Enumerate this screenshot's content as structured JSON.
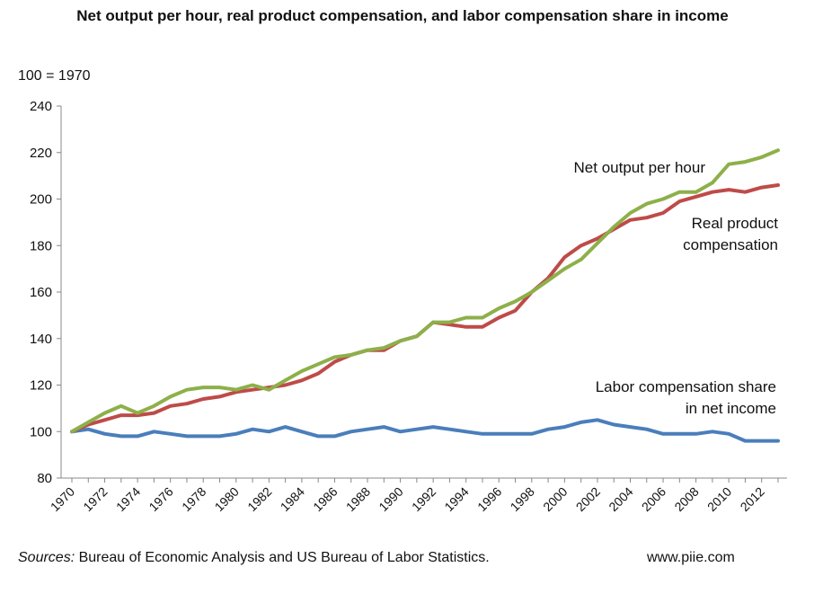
{
  "chart_data": {
    "type": "line",
    "title": "Net output per hour, real product compensation, and labor compensation share in income",
    "ylabel": "100 = 1970",
    "xlabel": "",
    "ylim": [
      80,
      240
    ],
    "yticks": [
      80,
      100,
      120,
      140,
      160,
      180,
      200,
      220,
      240
    ],
    "xtick_labels": [
      "1970",
      "1972",
      "1974",
      "1976",
      "1978",
      "1980",
      "1982",
      "1984",
      "1986",
      "1988",
      "1990",
      "1992",
      "1994",
      "1996",
      "1998",
      "2000",
      "2002",
      "2004",
      "2006",
      "2008",
      "2010",
      "2012"
    ],
    "grid": false,
    "x": [
      1970,
      1971,
      1972,
      1973,
      1974,
      1975,
      1976,
      1977,
      1978,
      1979,
      1980,
      1981,
      1982,
      1983,
      1984,
      1985,
      1986,
      1987,
      1988,
      1989,
      1990,
      1991,
      1992,
      1993,
      1994,
      1995,
      1996,
      1997,
      1998,
      1999,
      2000,
      2001,
      2002,
      2003,
      2004,
      2005,
      2006,
      2007,
      2008,
      2009,
      2010,
      2011,
      2012,
      2013
    ],
    "series": [
      {
        "name": "Net output per hour",
        "color": "#8db04a",
        "values": [
          100,
          104,
          108,
          111,
          108,
          111,
          115,
          118,
          119,
          119,
          118,
          120,
          118,
          122,
          126,
          129,
          132,
          133,
          135,
          136,
          139,
          141,
          147,
          147,
          149,
          149,
          153,
          156,
          160,
          165,
          170,
          174,
          181,
          188,
          194,
          198,
          200,
          203,
          203,
          207,
          215,
          216,
          218,
          221
        ]
      },
      {
        "name": "Real product compensation",
        "color": "#be4b48",
        "values": [
          100,
          103,
          105,
          107,
          107,
          108,
          111,
          112,
          114,
          115,
          117,
          118,
          119,
          120,
          122,
          125,
          130,
          133,
          135,
          135,
          139,
          141,
          147,
          146,
          145,
          145,
          149,
          152,
          160,
          166,
          175,
          180,
          183,
          187,
          191,
          192,
          194,
          199,
          201,
          203,
          204,
          203,
          205,
          206
        ]
      },
      {
        "name": "Labor compensation share in net income",
        "color": "#4a7ebb",
        "values": [
          100,
          101,
          99,
          98,
          98,
          100,
          99,
          98,
          98,
          98,
          99,
          101,
          100,
          102,
          100,
          98,
          98,
          100,
          101,
          102,
          100,
          101,
          102,
          101,
          100,
          99,
          99,
          99,
          99,
          101,
          102,
          104,
          105,
          103,
          102,
          101,
          99,
          99,
          99,
          100,
          99,
          96,
          96,
          96
        ]
      }
    ],
    "annotations": [
      {
        "label": "series.0",
        "lines": [
          "Net output per hour"
        ]
      },
      {
        "label": "series.1",
        "lines": [
          "Real product",
          "compensation"
        ]
      },
      {
        "label": "series.2",
        "lines": [
          "Labor compensation share",
          "in net income"
        ]
      }
    ]
  },
  "footer": {
    "sources_label": "Sources:",
    "sources_text": " Bureau of Economic Analysis and US Bureau of Labor Statistics.",
    "site": "www.piie.com"
  }
}
